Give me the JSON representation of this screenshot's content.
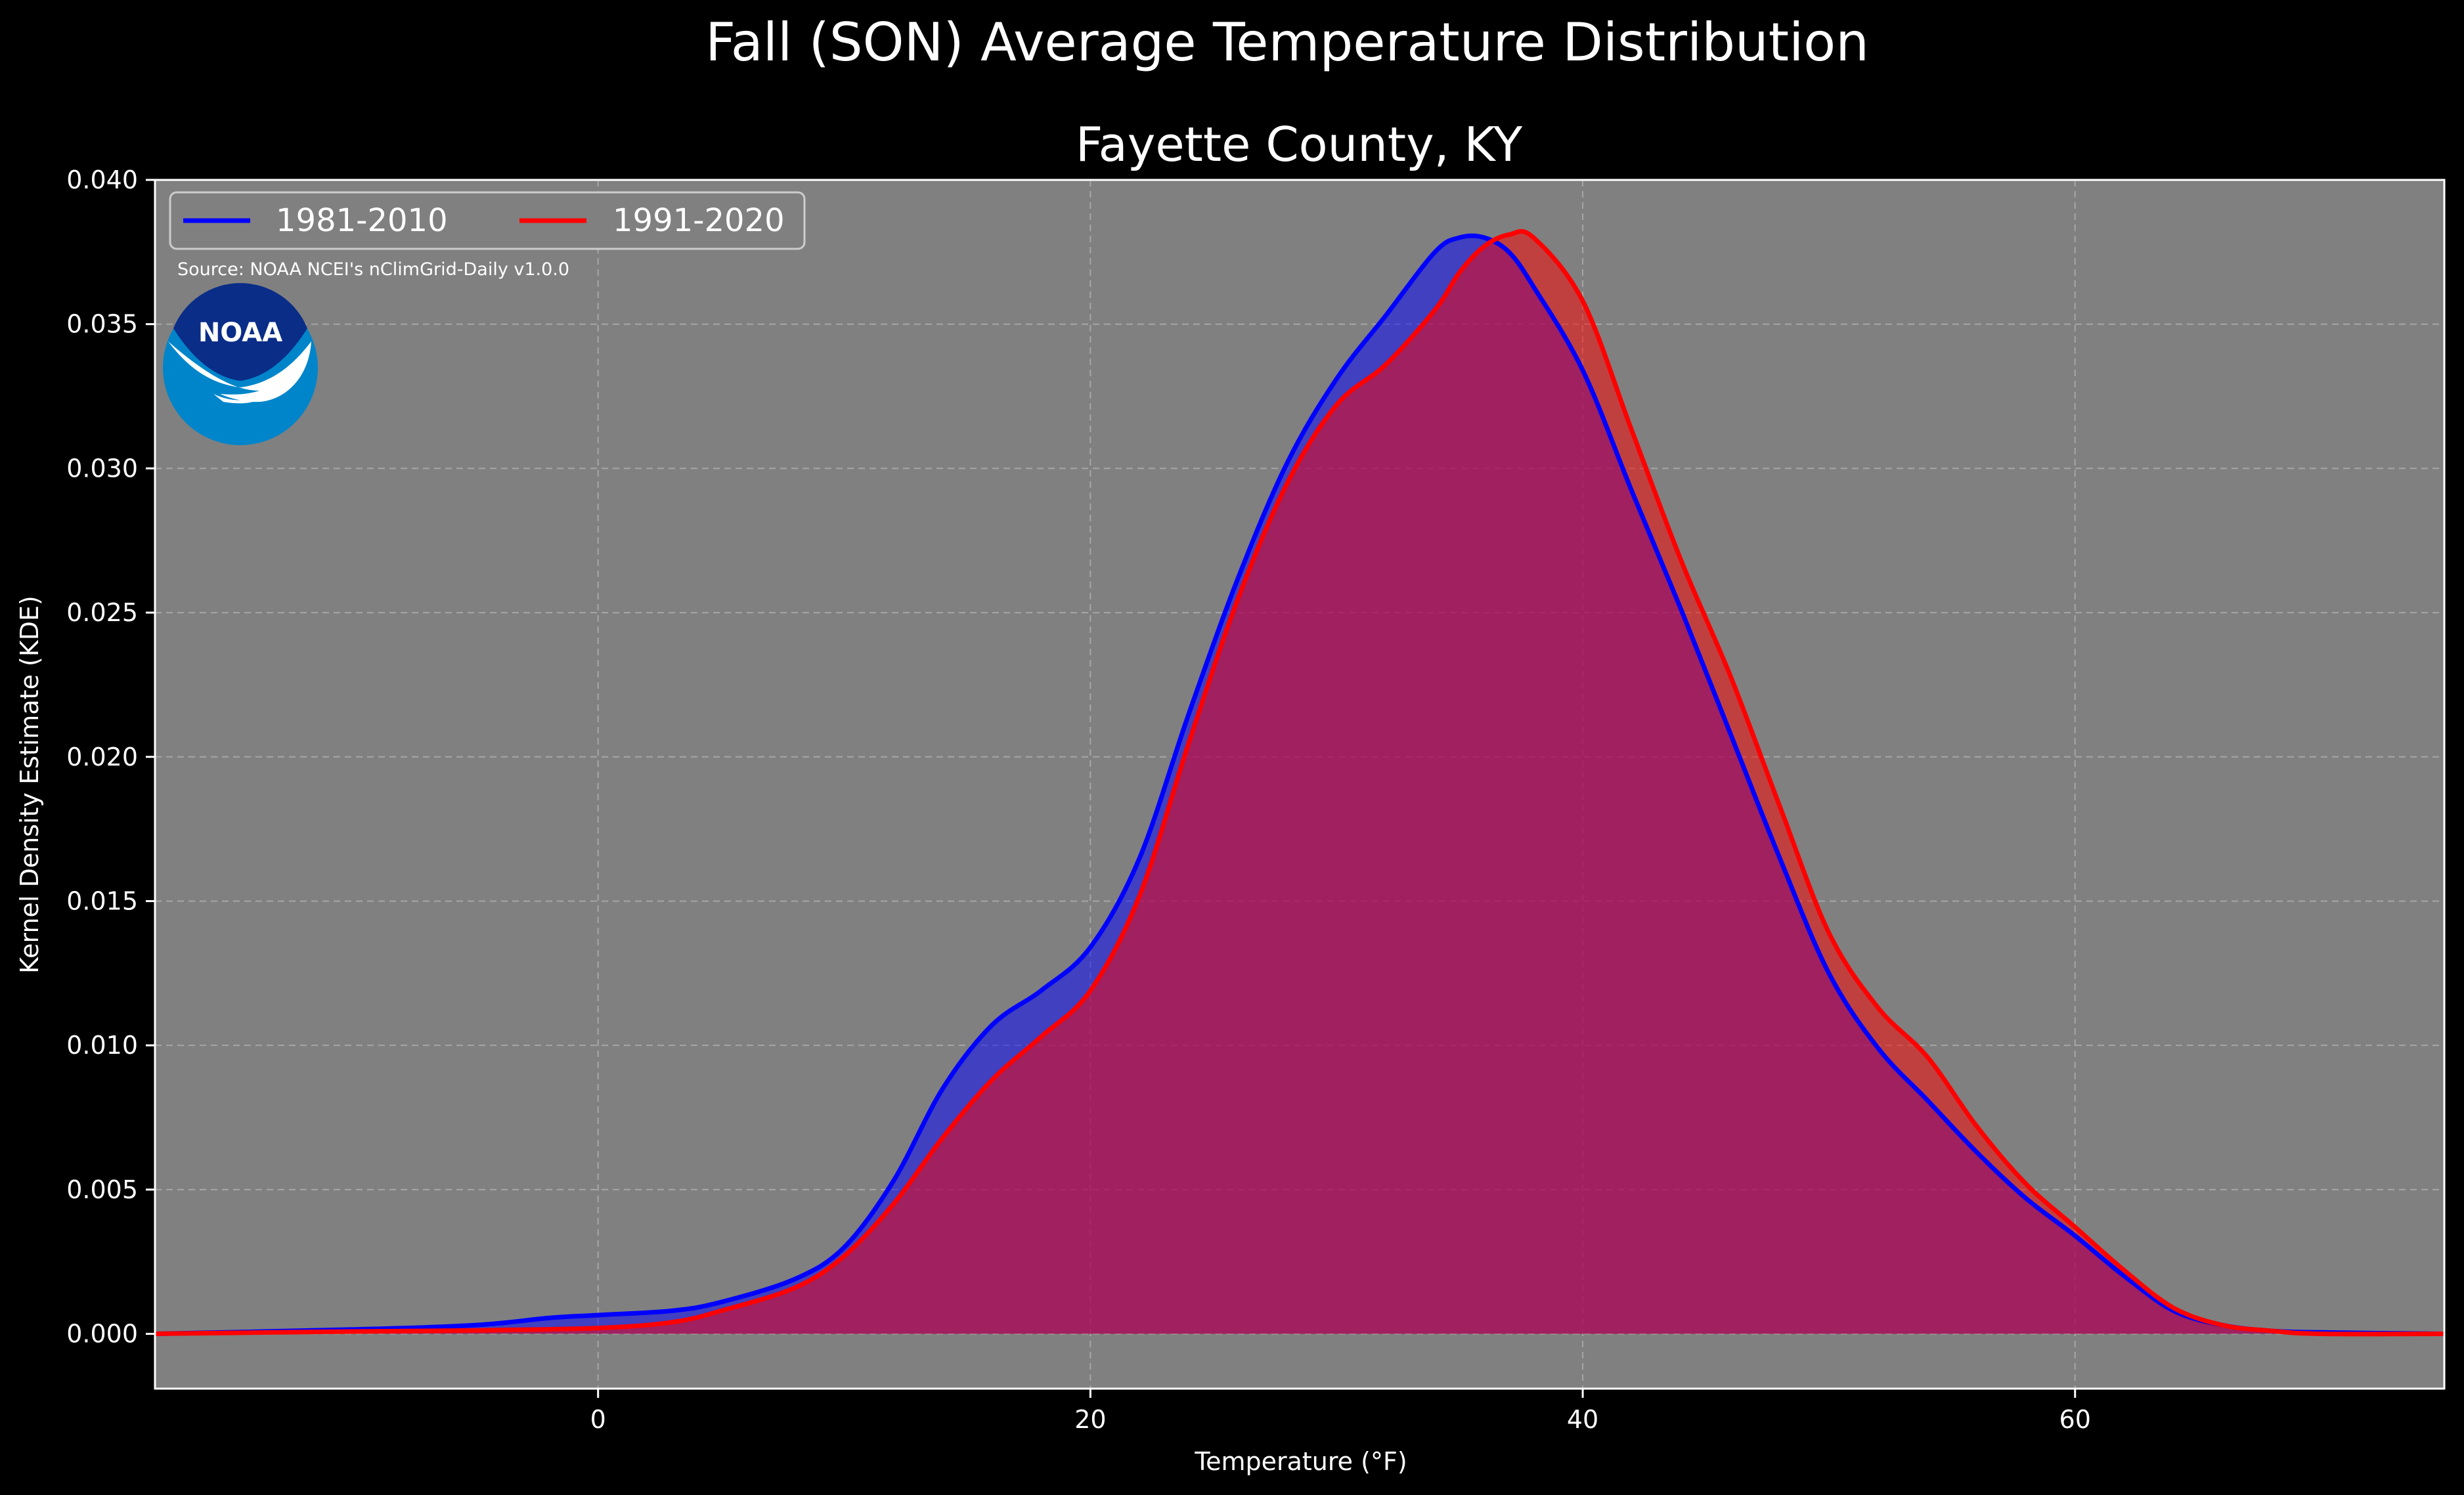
{
  "colors": {
    "figure_bg": "#000000",
    "plot_bg": "#808080",
    "series_1": "#0000ff",
    "series_2": "#ff0000",
    "logo_dark": "#0a2d88",
    "logo_light": "#0085ca"
  },
  "logo": {
    "text": "NOAA",
    "icon": "noaa-logo"
  },
  "source_note": "Source: NOAA NCEI's nClimGrid-Daily v1.0.0",
  "chart_data": {
    "type": "area",
    "suptitle": "Fall (SON) Average Temperature Distribution",
    "title": "Fayette County, KY",
    "xlabel": "Temperature (°F)",
    "ylabel": "Kernel Density Estimate (KDE)",
    "xlim": [
      -18,
      75
    ],
    "ylim": [
      -0.0019,
      0.04
    ],
    "x_ticks": [
      0,
      20,
      40,
      60
    ],
    "x_tick_labels": [
      "0",
      "20",
      "40",
      "60"
    ],
    "y_ticks": [
      0.0,
      0.005,
      0.01,
      0.015,
      0.02,
      0.025,
      0.03,
      0.035,
      0.04
    ],
    "y_tick_labels": [
      "0.000",
      "0.005",
      "0.010",
      "0.015",
      "0.020",
      "0.025",
      "0.030",
      "0.035",
      "0.040"
    ],
    "grid": true,
    "legend_position": "top-left",
    "series": [
      {
        "name": "1981-2010",
        "color": "#0000ff",
        "x": [
          -18,
          -10,
          -5,
          -2,
          0,
          3,
          5,
          8,
          10,
          12,
          14,
          16,
          18,
          20,
          22,
          24,
          26,
          28,
          30,
          32,
          34,
          35,
          36,
          37,
          38,
          40,
          42,
          44,
          46,
          48,
          50,
          52,
          54,
          56,
          58,
          60,
          62,
          64,
          66,
          68,
          70,
          75
        ],
        "y": [
          0.0,
          0.00015,
          0.0003,
          0.00055,
          0.00065,
          0.0008,
          0.0011,
          0.0019,
          0.003,
          0.0053,
          0.0085,
          0.0107,
          0.0119,
          0.0134,
          0.0165,
          0.0215,
          0.0262,
          0.0302,
          0.0331,
          0.0353,
          0.0375,
          0.038,
          0.038,
          0.0375,
          0.0363,
          0.0334,
          0.0292,
          0.0251,
          0.0208,
          0.0165,
          0.0125,
          0.0099,
          0.0081,
          0.0063,
          0.0047,
          0.0034,
          0.002,
          0.0008,
          0.0003,
          0.0001,
          5e-05,
          0.0
        ]
      },
      {
        "name": "1991-2020",
        "color": "#ff0000",
        "x": [
          -18,
          -10,
          -5,
          0,
          3,
          5,
          8,
          10,
          12,
          14,
          16,
          18,
          20,
          22,
          24,
          26,
          28,
          30,
          32,
          34,
          35,
          36,
          37,
          38,
          40,
          42,
          44,
          46,
          48,
          50,
          52,
          54,
          56,
          58,
          60,
          62,
          64,
          66,
          68,
          70,
          75
        ],
        "y": [
          0.0,
          8e-05,
          0.00012,
          0.0002,
          0.0004,
          0.0008,
          0.0016,
          0.0027,
          0.0045,
          0.0068,
          0.0088,
          0.0103,
          0.0119,
          0.0152,
          0.0205,
          0.0255,
          0.0295,
          0.0322,
          0.0336,
          0.0355,
          0.0368,
          0.0377,
          0.0381,
          0.038,
          0.0358,
          0.0313,
          0.0268,
          0.0228,
          0.0183,
          0.0139,
          0.0113,
          0.0096,
          0.0072,
          0.0052,
          0.0037,
          0.0022,
          0.0009,
          0.0003,
          0.0001,
          0.0,
          0.0
        ]
      }
    ]
  }
}
